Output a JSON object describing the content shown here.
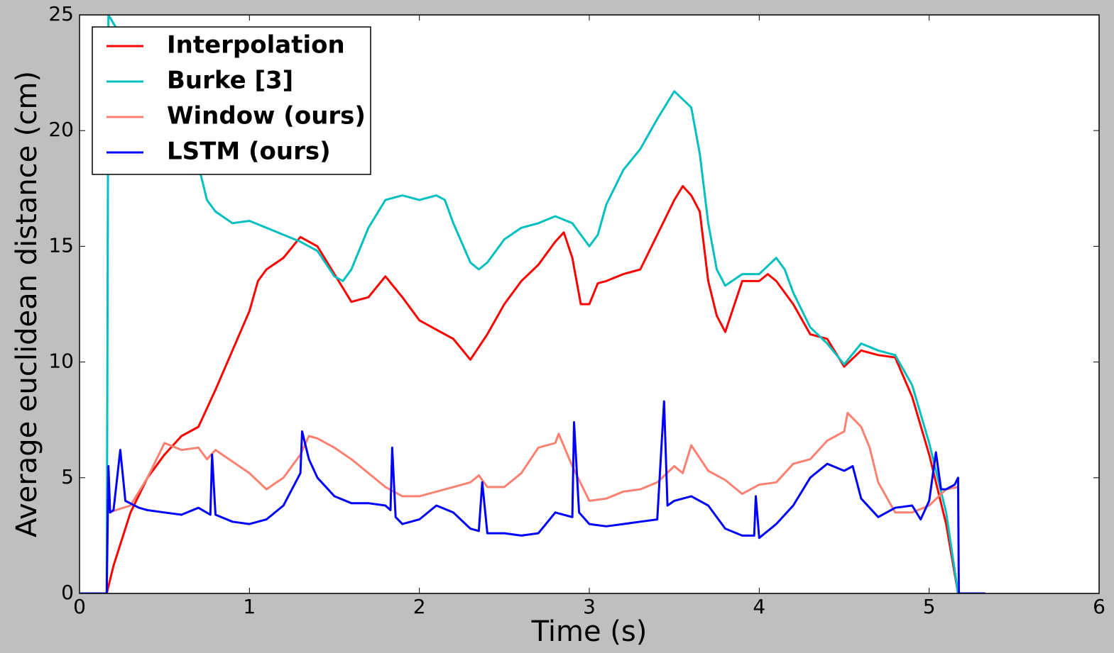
{
  "chart_data": {
    "type": "line",
    "xlabel": "Time (s)",
    "ylabel": "Average euclidean distance (cm)",
    "xlim": [
      0,
      6
    ],
    "xticks": [
      0,
      1,
      2,
      3,
      4,
      5,
      6
    ],
    "ylim": [
      0,
      25
    ],
    "yticks": [
      0,
      5,
      10,
      15,
      20,
      25
    ],
    "legend": "upper left",
    "series": [
      {
        "name": "Interpolation",
        "color": "#ff0000",
        "x": [
          0,
          0.16,
          0.2,
          0.3,
          0.4,
          0.5,
          0.6,
          0.7,
          0.8,
          0.9,
          1.0,
          1.05,
          1.1,
          1.2,
          1.3,
          1.4,
          1.5,
          1.6,
          1.7,
          1.8,
          1.9,
          2.0,
          2.1,
          2.2,
          2.3,
          2.4,
          2.5,
          2.6,
          2.7,
          2.8,
          2.85,
          2.9,
          2.95,
          3.0,
          3.05,
          3.1,
          3.2,
          3.3,
          3.4,
          3.5,
          3.55,
          3.6,
          3.65,
          3.7,
          3.75,
          3.8,
          3.9,
          4.0,
          4.05,
          4.1,
          4.2,
          4.3,
          4.4,
          4.5,
          4.6,
          4.7,
          4.8,
          4.9,
          5.0,
          5.1,
          5.17
        ],
        "values": [
          0,
          0,
          1.2,
          3.5,
          5,
          6,
          6.8,
          7.2,
          8.8,
          10.5,
          12.2,
          13.5,
          14,
          14.5,
          15.4,
          15,
          13.8,
          12.6,
          12.8,
          13.7,
          12.8,
          11.8,
          11.4,
          11,
          10.1,
          11.2,
          12.5,
          13.5,
          14.2,
          15.2,
          15.6,
          14.5,
          12.5,
          12.5,
          13.4,
          13.5,
          13.8,
          14,
          15.5,
          17,
          17.6,
          17.2,
          16.5,
          13.5,
          12,
          11.3,
          13.5,
          13.5,
          13.8,
          13.5,
          12.5,
          11.2,
          11,
          9.8,
          10.5,
          10.3,
          10.2,
          8.5,
          6,
          3,
          0
        ]
      },
      {
        "name": "Burke [3]",
        "color": "#00bfbf",
        "x": [
          0,
          0.16,
          0.17,
          0.7,
          0.75,
          0.8,
          0.9,
          1.0,
          1.1,
          1.2,
          1.3,
          1.4,
          1.5,
          1.55,
          1.6,
          1.7,
          1.8,
          1.9,
          2.0,
          2.1,
          2.15,
          2.2,
          2.3,
          2.35,
          2.4,
          2.5,
          2.6,
          2.7,
          2.8,
          2.9,
          3.0,
          3.05,
          3.1,
          3.2,
          3.3,
          3.4,
          3.5,
          3.6,
          3.65,
          3.7,
          3.75,
          3.8,
          3.9,
          4.0,
          4.1,
          4.15,
          4.2,
          4.3,
          4.4,
          4.5,
          4.6,
          4.7,
          4.8,
          4.9,
          5.0,
          5.1,
          5.17
        ],
        "values": [
          0,
          0,
          25,
          18.5,
          17,
          16.5,
          16,
          16.1,
          15.8,
          15.5,
          15.2,
          14.8,
          13.7,
          13.5,
          14,
          15.8,
          17,
          17.2,
          17,
          17.2,
          17,
          16,
          14.3,
          14,
          14.3,
          15.3,
          15.8,
          16,
          16.3,
          16,
          15,
          15.5,
          16.8,
          18.3,
          19.2,
          20.5,
          21.7,
          21,
          19,
          16,
          14,
          13.3,
          13.8,
          13.8,
          14.5,
          14,
          13,
          11.5,
          10.8,
          9.9,
          10.8,
          10.5,
          10.3,
          9,
          6.5,
          3.5,
          0
        ]
      },
      {
        "name": "Window (ours)",
        "color": "#fa8072",
        "x": [
          0.17,
          0.3,
          0.4,
          0.5,
          0.6,
          0.7,
          0.75,
          0.8,
          0.9,
          1.0,
          1.1,
          1.2,
          1.3,
          1.35,
          1.4,
          1.5,
          1.6,
          1.7,
          1.8,
          1.9,
          2.0,
          2.1,
          2.2,
          2.3,
          2.35,
          2.4,
          2.5,
          2.6,
          2.7,
          2.8,
          2.82,
          2.9,
          3.0,
          3.1,
          3.2,
          3.3,
          3.4,
          3.5,
          3.55,
          3.6,
          3.7,
          3.8,
          3.9,
          4.0,
          4.1,
          4.2,
          4.3,
          4.4,
          4.5,
          4.52,
          4.6,
          4.65,
          4.7,
          4.8,
          4.9,
          5.0,
          5.1,
          5.17
        ],
        "values": [
          3.5,
          3.8,
          5,
          6.5,
          6.2,
          6.3,
          5.8,
          6.2,
          5.7,
          5.2,
          4.5,
          5,
          6,
          6.8,
          6.7,
          6.3,
          5.8,
          5.2,
          4.6,
          4.2,
          4.2,
          4.4,
          4.6,
          4.8,
          5.1,
          4.6,
          4.6,
          5.2,
          6.3,
          6.5,
          6.9,
          5.5,
          4,
          4.1,
          4.4,
          4.5,
          4.8,
          5.5,
          5.2,
          6.4,
          5.3,
          4.9,
          4.3,
          4.7,
          4.8,
          5.6,
          5.8,
          6.6,
          7,
          7.8,
          7.2,
          6.3,
          4.8,
          3.5,
          3.5,
          3.8,
          4.5,
          4.6
        ]
      },
      {
        "name": "LSTM (ours)",
        "color": "#0000ff",
        "x": [
          0,
          0.16,
          0.17,
          0.18,
          0.2,
          0.24,
          0.27,
          0.35,
          0.4,
          0.5,
          0.6,
          0.7,
          0.77,
          0.78,
          0.8,
          0.9,
          1.0,
          1.1,
          1.2,
          1.25,
          1.3,
          1.31,
          1.35,
          1.4,
          1.5,
          1.6,
          1.7,
          1.8,
          1.83,
          1.84,
          1.86,
          1.9,
          2.0,
          2.1,
          2.2,
          2.3,
          2.35,
          2.37,
          2.4,
          2.5,
          2.6,
          2.7,
          2.8,
          2.9,
          2.91,
          2.94,
          3.0,
          3.1,
          3.2,
          3.3,
          3.4,
          3.44,
          3.46,
          3.5,
          3.6,
          3.7,
          3.8,
          3.9,
          3.97,
          3.98,
          4.0,
          4.1,
          4.2,
          4.3,
          4.4,
          4.5,
          4.55,
          4.6,
          4.7,
          4.8,
          4.9,
          4.95,
          5.0,
          5.04,
          5.07,
          5.1,
          5.15,
          5.17,
          5.175,
          5.33
        ],
        "values": [
          0,
          0,
          5.5,
          3.5,
          3.6,
          6.2,
          4,
          3.7,
          3.6,
          3.5,
          3.4,
          3.7,
          3.4,
          6,
          3.4,
          3.1,
          3.0,
          3.2,
          3.8,
          4.5,
          5.2,
          7,
          5.8,
          5,
          4.2,
          3.9,
          3.9,
          3.8,
          3.6,
          6.3,
          3.3,
          3.0,
          3.2,
          3.8,
          3.5,
          2.8,
          2.7,
          4.8,
          2.6,
          2.6,
          2.5,
          2.6,
          3.5,
          3.3,
          7.4,
          3.5,
          3.0,
          2.9,
          3.0,
          3.1,
          3.2,
          8.3,
          3.8,
          4.0,
          4.2,
          3.8,
          2.8,
          2.5,
          2.5,
          4.2,
          2.4,
          3.0,
          3.8,
          5.0,
          5.6,
          5.3,
          5.5,
          4.1,
          3.3,
          3.7,
          3.8,
          3.2,
          4.0,
          6.1,
          4.5,
          4.5,
          4.7,
          5.0,
          0,
          0
        ]
      }
    ]
  }
}
